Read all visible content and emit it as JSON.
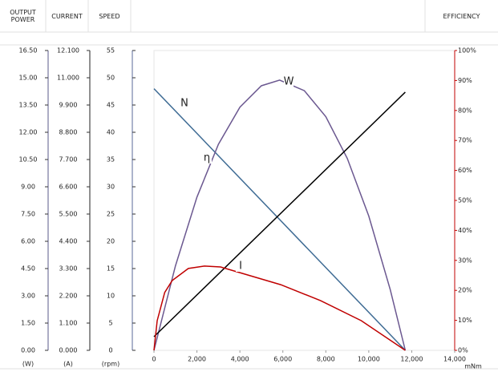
{
  "chart_data": {
    "type": "line",
    "headers": {
      "power": "OUTPUT POWER",
      "current": "CURRENT",
      "speed": "SPEED",
      "efficiency": "EFFICIENCY"
    },
    "xlabel": "mNm",
    "xlim": [
      0,
      14000
    ],
    "xticks": [
      0,
      {
        "value": 2000,
        "label": "2,000"
      },
      {
        "value": 4000,
        "label": "4,000"
      },
      {
        "value": 6000,
        "label": "6,000"
      },
      {
        "value": 8000,
        "label": "8,000"
      },
      {
        "value": 10000,
        "label": "10,000"
      },
      {
        "value": 12000,
        "label": "12,000"
      },
      {
        "value": 14000,
        "label": "14,000"
      }
    ],
    "yaxes": {
      "power": {
        "unit": "(W)",
        "lim": [
          0,
          16.5
        ],
        "ticks": [
          {
            "value": 0,
            "label": "0.00"
          },
          {
            "value": 1.5,
            "label": "1.50"
          },
          {
            "value": 3,
            "label": "3.00"
          },
          {
            "value": 4.5,
            "label": "4.50"
          },
          {
            "value": 6,
            "label": "6.00"
          },
          {
            "value": 7.5,
            "label": "7.50"
          },
          {
            "value": 9,
            "label": "9.00"
          },
          {
            "value": 10.5,
            "label": "10.50"
          },
          {
            "value": 12,
            "label": "12.00"
          },
          {
            "value": 13.5,
            "label": "13.50"
          },
          {
            "value": 15,
            "label": "15.00"
          },
          {
            "value": 16.5,
            "label": "16.50"
          }
        ]
      },
      "current": {
        "unit": "(A)",
        "lim": [
          0,
          12.1
        ],
        "ticks": [
          {
            "value": 0,
            "label": "0.000"
          },
          {
            "value": 1.1,
            "label": "1.100"
          },
          {
            "value": 2.2,
            "label": "2.200"
          },
          {
            "value": 3.3,
            "label": "3.300"
          },
          {
            "value": 4.4,
            "label": "4.400"
          },
          {
            "value": 5.5,
            "label": "5.500"
          },
          {
            "value": 6.6,
            "label": "6.600"
          },
          {
            "value": 7.7,
            "label": "7.700"
          },
          {
            "value": 8.8,
            "label": "8.800"
          },
          {
            "value": 9.9,
            "label": "9.900"
          },
          {
            "value": 11,
            "label": "11.000"
          },
          {
            "value": 12.1,
            "label": "12.100"
          }
        ]
      },
      "speed": {
        "unit": "(rpm)",
        "lim": [
          0,
          55
        ],
        "ticks": [
          0,
          5,
          10,
          15,
          20,
          25,
          30,
          35,
          40,
          45,
          50,
          55
        ]
      },
      "efficiency": {
        "lim": [
          0,
          100
        ],
        "ticks": [
          {
            "value": 0,
            "label": "0%"
          },
          {
            "value": 10,
            "label": "10%"
          },
          {
            "value": 20,
            "label": "20%"
          },
          {
            "value": 30,
            "label": "30%"
          },
          {
            "value": 40,
            "label": "40%"
          },
          {
            "value": 50,
            "label": "50%"
          },
          {
            "value": 60,
            "label": "60%"
          },
          {
            "value": 70,
            "label": "70%"
          },
          {
            "value": 80,
            "label": "80%"
          },
          {
            "value": 90,
            "label": "90%"
          },
          {
            "value": 100,
            "label": "100%"
          }
        ]
      }
    },
    "series": [
      {
        "name": "N",
        "color": "#3e6b94",
        "axis": "speed",
        "x": [
          0,
          11700
        ],
        "values": [
          48,
          0
        ]
      },
      {
        "name": "W",
        "color": "#6b5890",
        "axis": "power",
        "x": [
          0,
          1000,
          2000,
          3000,
          4000,
          5000,
          5850,
          7000,
          8000,
          9000,
          10000,
          11000,
          11700
        ],
        "values": [
          0,
          4.65,
          8.43,
          11.34,
          13.38,
          14.56,
          14.87,
          14.29,
          12.86,
          10.56,
          7.39,
          3.34,
          0
        ]
      },
      {
        "name": "η",
        "color": "#000000",
        "axis": "current",
        "x": [
          0,
          11700
        ],
        "values": [
          0.55,
          10.42
        ]
      },
      {
        "name": "I",
        "color": "#c00000",
        "axis": "efficiency",
        "x": [
          0,
          150,
          500,
          850,
          1600,
          2350,
          3100,
          4000,
          5900,
          7750,
          9650,
          11700
        ],
        "values": [
          0,
          9.9,
          19.3,
          23.3,
          27.3,
          28.1,
          27.8,
          25.9,
          21.9,
          16.6,
          9.9,
          0
        ]
      }
    ]
  }
}
